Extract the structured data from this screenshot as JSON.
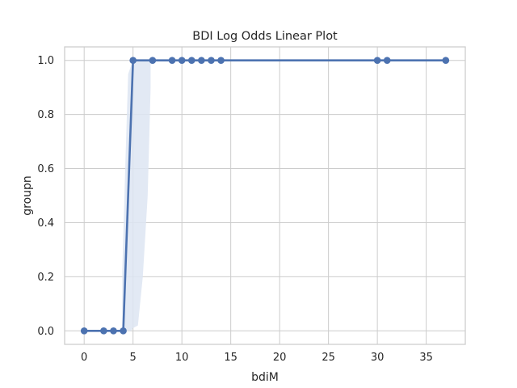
{
  "chart_data": {
    "type": "line",
    "title": "BDI Log Odds Linear Plot",
    "xlabel": "bdiM",
    "ylabel": "groupn",
    "xlim": [
      -2,
      39
    ],
    "ylim": [
      -0.05,
      1.05
    ],
    "xticks": [
      0,
      5,
      10,
      15,
      20,
      25,
      30,
      35
    ],
    "yticks": [
      0.0,
      0.2,
      0.4,
      0.6,
      0.8,
      1.0
    ],
    "ytick_labels": [
      "0.0",
      "0.2",
      "0.4",
      "0.6",
      "0.8",
      "1.0"
    ],
    "grid": true,
    "series": [
      {
        "color": "#4c72b0",
        "x": [
          0,
          2,
          3,
          4,
          5,
          7,
          9,
          10,
          11,
          12,
          13,
          14,
          30,
          31,
          37
        ],
        "y": [
          0,
          0,
          0,
          0,
          1,
          1,
          1,
          1,
          1,
          1,
          1,
          1,
          1,
          1,
          1
        ],
        "points_x": [
          0,
          2,
          3,
          4,
          5,
          7,
          9,
          10,
          11,
          12,
          13,
          14,
          30,
          31,
          37
        ],
        "points_y": [
          0,
          0,
          0,
          0,
          1,
          1,
          1,
          1,
          1,
          1,
          1,
          1,
          1,
          1,
          1
        ]
      }
    ],
    "confidence_band": {
      "color": "#dde5f2",
      "x": [
        3.9,
        4.2,
        4.5,
        4.8,
        5.0,
        5.5,
        6.0,
        6.5,
        6.8
      ],
      "lower": [
        0.0,
        0.0,
        0.0,
        0.0,
        0.01,
        0.02,
        0.2,
        0.5,
        0.9
      ],
      "upper": [
        0.22,
        0.6,
        0.95,
        0.98,
        1.0,
        1.0,
        1.0,
        1.0,
        1.0
      ]
    }
  }
}
